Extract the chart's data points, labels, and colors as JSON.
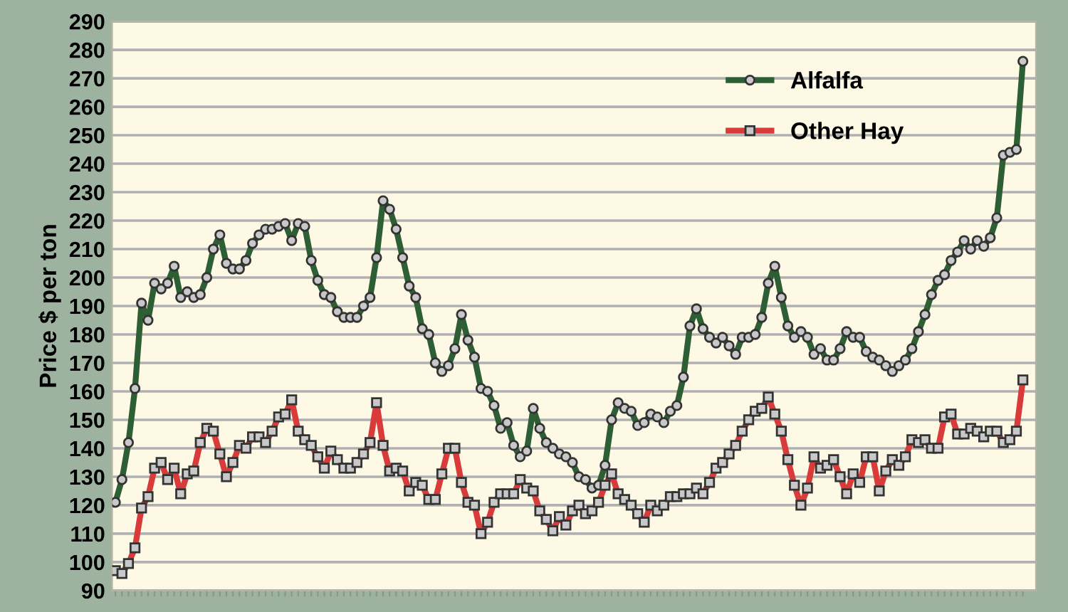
{
  "chart_data": {
    "type": "line",
    "ylabel": "Price $ per ton",
    "categories": [
      null,
      null,
      null,
      null,
      null,
      null,
      null,
      null,
      null,
      null,
      null,
      null,
      null,
      null,
      null,
      null,
      null,
      null,
      null,
      null,
      null,
      null,
      null,
      null,
      null,
      null,
      null,
      null,
      null,
      null,
      null,
      null,
      null,
      null,
      null,
      null,
      null,
      null,
      null,
      null,
      null,
      null,
      null,
      null,
      null,
      null,
      null,
      null,
      null,
      null,
      null,
      null,
      null,
      null,
      null,
      null,
      null,
      null,
      null,
      null,
      null,
      null,
      null,
      null,
      null,
      null,
      null,
      null,
      null,
      null,
      null,
      null,
      null,
      null,
      null,
      null,
      null,
      null,
      null,
      null,
      null,
      null,
      null,
      null,
      null,
      null,
      null,
      null,
      null,
      null,
      null,
      null,
      null,
      null,
      null,
      null,
      null,
      null,
      null,
      null,
      null,
      null,
      null,
      null,
      null,
      null,
      null,
      null,
      null,
      null,
      null,
      null,
      null,
      null,
      null,
      null,
      null,
      null,
      null,
      null,
      null,
      null,
      null,
      null,
      null,
      null,
      null,
      null,
      null,
      null,
      null,
      null,
      null,
      null,
      null,
      null,
      null,
      null,
      null,
      null
    ],
    "series": [
      {
        "name": "Alfalfa",
        "color": "#2e5e34",
        "marker": "circle",
        "values": [
          121,
          129,
          142,
          161,
          191,
          185,
          198,
          196,
          198,
          204,
          193,
          195,
          193,
          194,
          200,
          210,
          215,
          205,
          203,
          203,
          206,
          212,
          215,
          217,
          217,
          218,
          219,
          213,
          219,
          218,
          206,
          199,
          194,
          193,
          188,
          186,
          186,
          186,
          190,
          193,
          207,
          227,
          224,
          217,
          207,
          197,
          193,
          182,
          180,
          170,
          167,
          169,
          175,
          187,
          178,
          172,
          161,
          160,
          155,
          147,
          149,
          141,
          137,
          139,
          154,
          147,
          142,
          140,
          138,
          137,
          135,
          130,
          129,
          126,
          127,
          134,
          150,
          156,
          154,
          153,
          148,
          149,
          152,
          151,
          149,
          153,
          155,
          165,
          183,
          189,
          182,
          179,
          177,
          179,
          176,
          173,
          179,
          179,
          180,
          186,
          198,
          204,
          193,
          183,
          179,
          181,
          179,
          173,
          175,
          171,
          171,
          175,
          181,
          179,
          179,
          174,
          172,
          171,
          169,
          167,
          169,
          171,
          175,
          181,
          187,
          194,
          199,
          201,
          206,
          209,
          213,
          210,
          213,
          211,
          214,
          221,
          243,
          244,
          245,
          276
        ]
      },
      {
        "name": "Other Hay",
        "color": "#d93a3a",
        "marker": "square",
        "values": [
          97,
          96,
          99.5,
          105,
          119,
          123,
          133,
          135,
          129,
          133,
          124,
          131,
          132,
          142,
          147,
          146,
          138,
          130,
          135,
          141,
          140,
          144,
          144,
          142,
          146,
          151,
          152,
          157,
          146,
          143,
          141,
          137,
          133,
          139,
          136,
          133,
          133,
          135,
          138,
          142,
          156,
          141,
          132,
          133,
          132,
          125,
          128,
          127,
          122,
          122,
          131,
          140,
          140,
          128,
          121,
          120,
          110,
          114,
          121,
          124,
          124,
          124,
          129,
          126,
          125,
          118,
          115,
          111,
          116,
          113,
          118,
          120,
          117,
          118,
          121,
          127,
          131,
          124,
          122,
          120,
          117,
          114,
          120,
          118,
          120,
          123,
          123,
          124,
          124,
          126,
          124,
          128,
          133,
          135,
          138,
          141,
          146,
          150,
          153,
          154,
          158,
          152,
          146,
          136,
          127,
          120,
          126,
          137,
          133,
          134,
          136,
          130,
          124,
          131,
          128,
          137,
          137,
          125,
          132,
          136,
          134,
          137,
          143,
          142,
          143,
          140,
          140,
          151,
          152,
          145,
          145,
          147,
          146,
          144,
          146,
          146,
          142,
          143,
          146,
          164
        ]
      }
    ],
    "ylim": [
      90,
      290
    ],
    "yticks": [
      90,
      100,
      110,
      120,
      130,
      140,
      150,
      160,
      170,
      180,
      190,
      200,
      210,
      220,
      230,
      240,
      250,
      260,
      270,
      280,
      290
    ],
    "grid": "y",
    "legend": "top right",
    "tick_labels": "y",
    "line_style": "solid"
  }
}
